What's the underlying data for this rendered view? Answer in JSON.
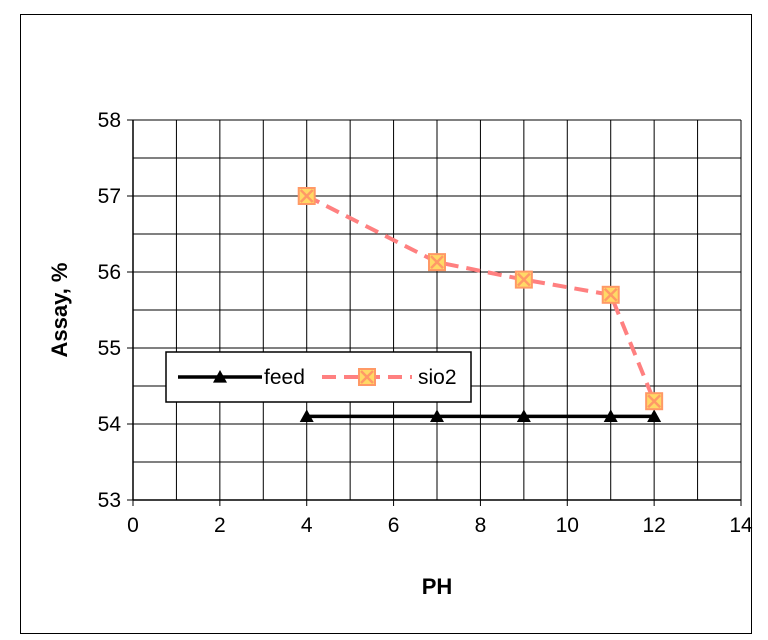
{
  "chart_data": {
    "type": "line",
    "title": "",
    "xlabel": "PH",
    "ylabel": "Assay, %",
    "xlim": [
      0,
      14
    ],
    "ylim": [
      53,
      58
    ],
    "x_ticks": [
      0,
      2,
      4,
      6,
      8,
      10,
      12,
      14
    ],
    "y_ticks": [
      53,
      54,
      55,
      56,
      57,
      58
    ],
    "x_grid_step": 1,
    "y_grid_step": 0.5,
    "grid": true,
    "legend_position": "center-left",
    "series": [
      {
        "name": "feed",
        "x": [
          4,
          7,
          9,
          11,
          12
        ],
        "values": [
          54.1,
          54.1,
          54.1,
          54.1,
          54.1
        ],
        "color": "#000000",
        "marker": "triangle",
        "line_style": "solid"
      },
      {
        "name": "sio2",
        "x": [
          4,
          7,
          9,
          11,
          12
        ],
        "values": [
          57.0,
          56.13,
          55.9,
          55.7,
          54.3
        ],
        "color": "#ff8080",
        "marker_fill": "#ffd966",
        "marker_edge": "#ff9966",
        "marker": "x-square",
        "line_style": "dashed"
      }
    ]
  }
}
